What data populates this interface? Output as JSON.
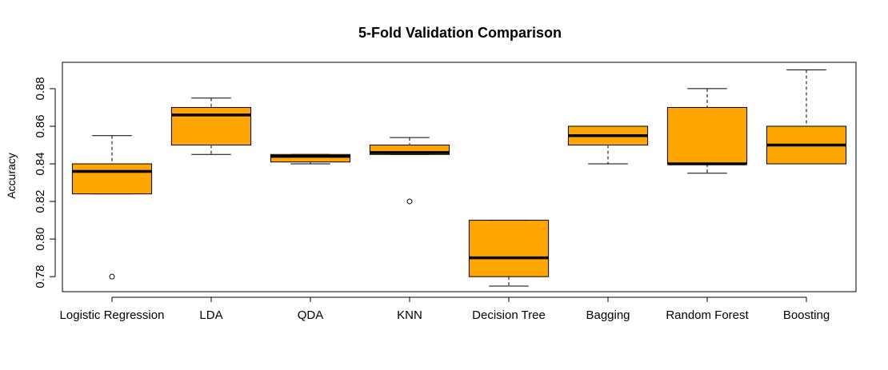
{
  "chart_data": {
    "type": "boxplot",
    "title": "5-Fold Validation Comparison",
    "xlabel": "",
    "ylabel": "Accuracy",
    "ylim": [
      0.772,
      0.894
    ],
    "yticks": [
      "0.78",
      "0.80",
      "0.82",
      "0.84",
      "0.86",
      "0.88"
    ],
    "grid": false,
    "box_color": "#FFA500",
    "categories": [
      "Logistic Regression",
      "LDA",
      "QDA",
      "KNN",
      "Decision Tree",
      "Bagging",
      "Random Forest",
      "Boosting"
    ],
    "boxes": [
      {
        "min": 0.824,
        "q1": 0.824,
        "median": 0.836,
        "q3": 0.84,
        "max": 0.855,
        "outliers": [
          0.78
        ]
      },
      {
        "min": 0.845,
        "q1": 0.85,
        "median": 0.866,
        "q3": 0.87,
        "max": 0.875,
        "outliers": []
      },
      {
        "min": 0.84,
        "q1": 0.841,
        "median": 0.844,
        "q3": 0.845,
        "max": 0.845,
        "outliers": []
      },
      {
        "min": 0.845,
        "q1": 0.845,
        "median": 0.846,
        "q3": 0.85,
        "max": 0.854,
        "outliers": [
          0.82
        ]
      },
      {
        "min": 0.775,
        "q1": 0.78,
        "median": 0.79,
        "q3": 0.81,
        "max": 0.81,
        "outliers": []
      },
      {
        "min": 0.84,
        "q1": 0.85,
        "median": 0.855,
        "q3": 0.86,
        "max": 0.86,
        "outliers": []
      },
      {
        "min": 0.835,
        "q1": 0.84,
        "median": 0.84,
        "q3": 0.87,
        "max": 0.88,
        "outliers": []
      },
      {
        "min": 0.84,
        "q1": 0.84,
        "median": 0.85,
        "q3": 0.86,
        "max": 0.89,
        "outliers": []
      }
    ]
  }
}
